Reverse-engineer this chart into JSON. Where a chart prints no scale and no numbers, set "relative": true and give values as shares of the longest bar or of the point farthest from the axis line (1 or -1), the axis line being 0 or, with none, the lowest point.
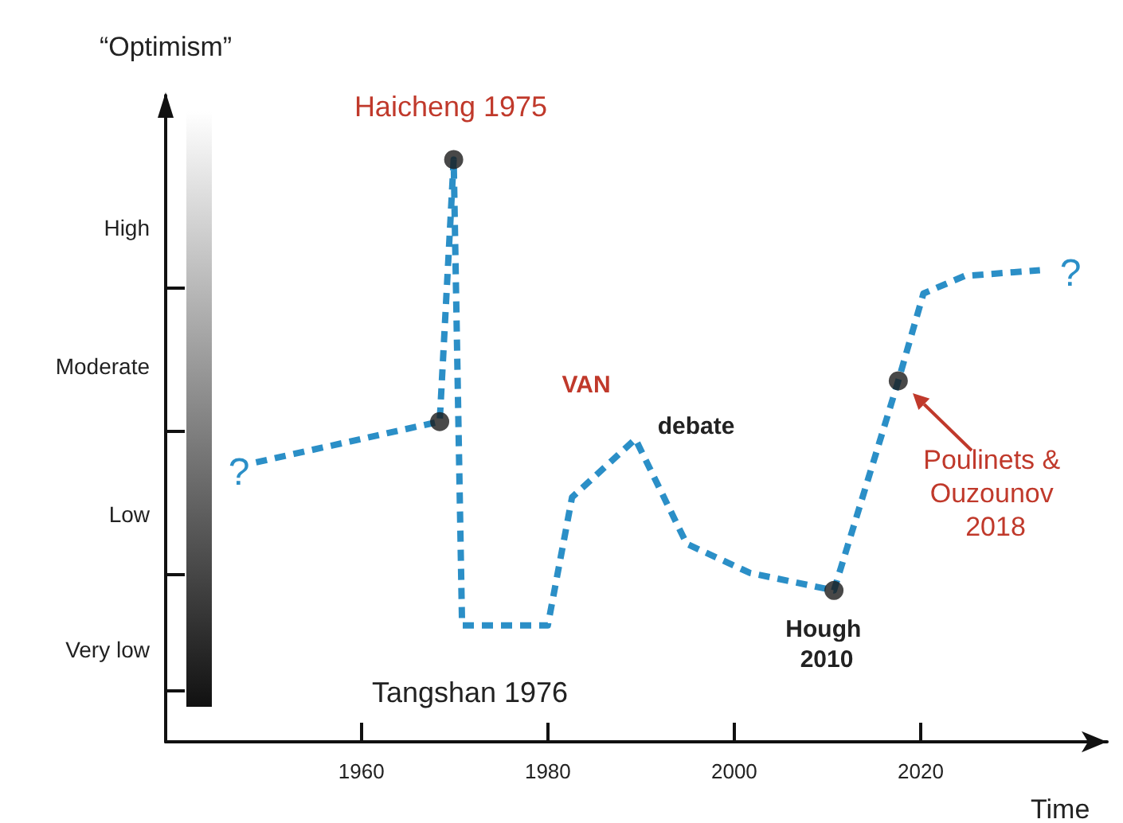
{
  "chart_data": {
    "type": "line",
    "relative": true,
    "xlabel": "Time",
    "ylabel": "“Optimism”",
    "xlim": [
      1939,
      2040
    ],
    "xticks": [
      1960,
      1980,
      2000,
      2020
    ],
    "grid": false,
    "line_style": "dashed",
    "marker": "none",
    "series": [
      {
        "color": "#2b8fc7",
        "x": [
          1948.7,
          1968.4,
          1969.9,
          1970.8,
          1980,
          1982.6,
          1989.4,
          1994.9,
          2001.7,
          2010.7,
          2017.6,
          2020.3,
          2024.7,
          2032.8
        ],
        "values": [
          0.48,
          0.55,
          1.0,
          0.2,
          0.2,
          0.42,
          0.52,
          0.34,
          0.29,
          0.26,
          0.62,
          0.77,
          0.8,
          0.81
        ]
      },
      {
        "type": "scatter",
        "marker": "circle",
        "color": "#1a1a1a",
        "x": [
          1968.4,
          1969.9,
          2010.7,
          2017.6
        ],
        "values": [
          0.55,
          1.0,
          0.26,
          0.62
        ]
      }
    ],
    "annotations": [
      "?",
      "?",
      "Haicheng 1975",
      "Tangshan 1976",
      "VAN",
      "debate",
      "Hough 2010",
      "Poulinets & Ouzounov 2018",
      "High",
      "Moderate",
      "Low",
      "Very low"
    ]
  }
}
